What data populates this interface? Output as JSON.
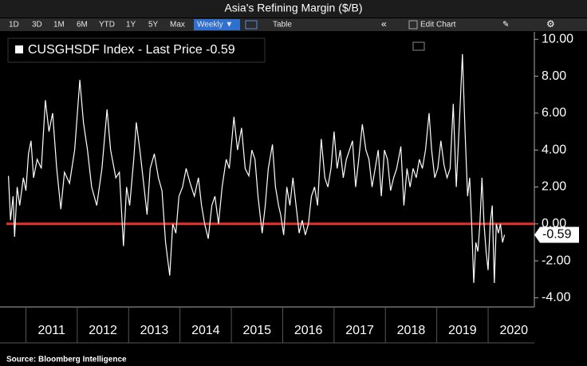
{
  "chart_data": {
    "type": "line",
    "title": "Asia's Refining Margin ($/B)",
    "toolbar": [
      "1D",
      "3D",
      "1M",
      "6M",
      "YTD",
      "1Y",
      "5Y",
      "Max",
      "Weekly ▼",
      "Table",
      "Edit Chart"
    ],
    "source": "Source: Bloomberg Intelligence",
    "x": [
      2010.66,
      2010.7,
      2010.75,
      2010.78,
      2010.83,
      2010.88,
      2010.95,
      2011.0,
      2011.05,
      2011.1,
      2011.15,
      2011.22,
      2011.3,
      2011.38,
      2011.45,
      2011.52,
      2011.6,
      2011.68,
      2011.75,
      2011.85,
      2011.95,
      2012.05,
      2012.12,
      2012.2,
      2012.28,
      2012.38,
      2012.48,
      2012.58,
      2012.65,
      2012.75,
      2012.82,
      2012.9,
      2012.96,
      2013.02,
      2013.1,
      2013.15,
      2013.22,
      2013.3,
      2013.36,
      2013.42,
      2013.5,
      2013.58,
      2013.65,
      2013.72,
      2013.8,
      2013.86,
      2013.92,
      2013.98,
      2014.05,
      2014.12,
      2014.2,
      2014.28,
      2014.36,
      2014.42,
      2014.48,
      2014.55,
      2014.62,
      2014.68,
      2014.75,
      2014.82,
      2014.9,
      2014.96,
      2015.05,
      2015.12,
      2015.2,
      2015.27,
      2015.34,
      2015.4,
      2015.46,
      2015.52,
      2015.6,
      2015.66,
      2015.72,
      2015.8,
      2015.86,
      2015.92,
      2015.96,
      2016.02,
      2016.08,
      2016.14,
      2016.2,
      2016.26,
      2016.32,
      2016.38,
      2016.44,
      2016.5,
      2016.56,
      2016.62,
      2016.68,
      2016.75,
      2016.82,
      2016.88,
      2016.94,
      2017.0,
      2017.06,
      2017.12,
      2017.18,
      2017.24,
      2017.3,
      2017.36,
      2017.42,
      2017.48,
      2017.55,
      2017.62,
      2017.68,
      2017.74,
      2017.8,
      2017.86,
      2017.92,
      2017.98,
      2018.04,
      2018.1,
      2018.16,
      2018.22,
      2018.3,
      2018.36,
      2018.42,
      2018.48,
      2018.54,
      2018.6,
      2018.66,
      2018.72,
      2018.78,
      2018.85,
      2018.9,
      2018.96,
      2019.02,
      2019.08,
      2019.14,
      2019.2,
      2019.26,
      2019.32,
      2019.38,
      2019.44,
      2019.5,
      2019.55,
      2019.6,
      2019.64,
      2019.68,
      2019.72,
      2019.76,
      2019.8,
      2019.84,
      2019.88,
      2019.92,
      2019.96,
      2020.0,
      2020.04,
      2020.08,
      2020.12,
      2020.16,
      2020.2,
      2020.24,
      2020.28,
      2020.32
    ],
    "series": [
      {
        "name": "CUSGHSDF Index - Last Price -0.59",
        "color": "#ffffff",
        "values": [
          2.6,
          0.2,
          1.5,
          -0.7,
          2.0,
          1.0,
          2.5,
          1.8,
          3.8,
          4.5,
          2.5,
          3.5,
          3.0,
          6.7,
          5.0,
          6.0,
          3.0,
          0.8,
          2.8,
          2.2,
          4.0,
          7.8,
          5.5,
          4.0,
          2.0,
          1.0,
          3.0,
          6.2,
          4.0,
          2.5,
          2.8,
          -1.2,
          2.0,
          1.0,
          3.5,
          5.5,
          4.0,
          2.0,
          0.5,
          3.0,
          3.8,
          2.5,
          1.8,
          -1.0,
          -2.8,
          0.0,
          -0.5,
          1.5,
          2.0,
          3.0,
          2.2,
          1.5,
          2.5,
          1.0,
          0.0,
          -0.8,
          1.0,
          1.5,
          0.0,
          2.0,
          3.5,
          3.0,
          5.8,
          4.0,
          5.2,
          3.0,
          2.6,
          4.0,
          3.5,
          1.5,
          -0.5,
          1.0,
          3.0,
          4.3,
          2.0,
          1.0,
          0.5,
          -0.6,
          2.0,
          1.0,
          2.5,
          1.0,
          -0.5,
          0.2,
          -0.6,
          0.0,
          1.5,
          2.0,
          1.0,
          4.6,
          2.5,
          2.0,
          3.0,
          5.0,
          3.0,
          4.0,
          2.5,
          3.5,
          4.0,
          4.5,
          2.0,
          3.5,
          5.4,
          4.0,
          3.5,
          2.0,
          3.0,
          4.0,
          1.5,
          4.0,
          3.5,
          1.8,
          2.5,
          3.0,
          4.2,
          1.0,
          3.0,
          2.0,
          3.0,
          2.5,
          3.5,
          3.0,
          4.0,
          6.0,
          4.0,
          2.5,
          3.0,
          4.5,
          3.2,
          2.5,
          3.0,
          6.5,
          2.0,
          5.5,
          9.2,
          5.0,
          1.5,
          2.5,
          0.0,
          -3.2,
          -1.0,
          -1.5,
          0.0,
          2.5,
          0.0,
          -1.5,
          -2.5,
          0.0,
          1.0,
          -3.2,
          0.0,
          -0.5,
          0.0,
          -1.0,
          -0.59
        ]
      }
    ],
    "last_price": {
      "value": -0.59,
      "label": "-0.59"
    },
    "reference_line": {
      "value": 0,
      "color": "#e8312b"
    },
    "xlim": [
      2010.62,
      2020.9
    ],
    "xticks": [
      2011,
      2012,
      2013,
      2014,
      2015,
      2016,
      2017,
      2018,
      2019,
      2020
    ],
    "ylim": [
      -4.5,
      10.4
    ],
    "yticks": [
      {
        "value": 10,
        "label": "10.00"
      },
      {
        "value": 8,
        "label": "8.00"
      },
      {
        "value": 6,
        "label": "6.00"
      },
      {
        "value": 4,
        "label": "4.00"
      },
      {
        "value": 2,
        "label": "2.00"
      },
      {
        "value": 0,
        "label": "0.00"
      },
      {
        "value": -2,
        "label": "-2.00"
      },
      {
        "value": -4,
        "label": "-4.00"
      }
    ],
    "grid": false
  }
}
